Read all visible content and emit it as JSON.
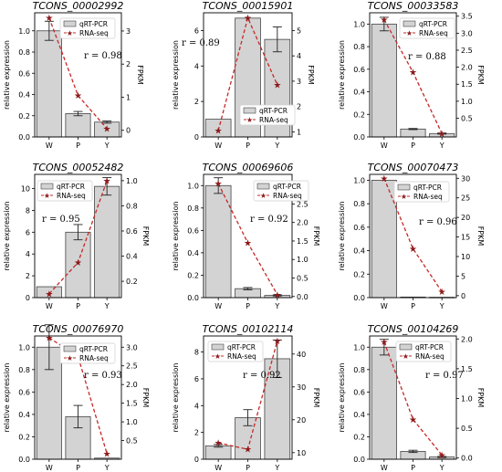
{
  "figure": {
    "left_axis_label": "relative expression",
    "right_axis_label": "FPKM",
    "legend": {
      "bar": "qRT-PCR",
      "line": "RNA-seq"
    },
    "colors": {
      "bar_fill": "#d3d3d3",
      "bar_edge": "#444444",
      "line": "#c62828",
      "marker": "#8b1a1a"
    }
  },
  "chart_data": [
    {
      "type": "bar",
      "title": "TCONS_00002992",
      "categories": [
        "W",
        "P",
        "Y"
      ],
      "series": [
        {
          "name": "qRT-PCR",
          "axis": "left",
          "values": [
            1.0,
            0.22,
            0.14
          ],
          "errors": [
            0.09,
            0.02,
            0.01
          ]
        },
        {
          "name": "RNA-seq",
          "axis": "right",
          "values": [
            3.4,
            1.05,
            0.05
          ]
        }
      ],
      "ylim_left": [
        0,
        1.17
      ],
      "yticks_left": [
        0.0,
        0.2,
        0.4,
        0.6,
        0.8,
        1.0
      ],
      "ylim_right": [
        -0.2,
        3.55
      ],
      "yticks_right": [
        0,
        1,
        2,
        3
      ],
      "annotation": "r = 0.98",
      "legend_position": "upper right"
    },
    {
      "type": "bar",
      "title": "TCONS_00015901",
      "categories": [
        "W",
        "P",
        "Y"
      ],
      "series": [
        {
          "name": "qRT-PCR",
          "axis": "left",
          "values": [
            1.0,
            6.7,
            5.5
          ],
          "errors": [
            0.0,
            0.0,
            0.7
          ]
        },
        {
          "name": "RNA-seq",
          "axis": "right",
          "values": [
            1.05,
            5.5,
            2.85
          ]
        }
      ],
      "ylim_left": [
        0,
        7.0
      ],
      "yticks_left": [
        0,
        2,
        4,
        6
      ],
      "ylim_right": [
        0.8,
        5.7
      ],
      "yticks_right": [
        1,
        2,
        3,
        4,
        5
      ],
      "annotation": "r = 0.89",
      "legend_position": "lower right"
    },
    {
      "type": "bar",
      "title": "TCONS_00033583",
      "categories": [
        "W",
        "P",
        "Y"
      ],
      "series": [
        {
          "name": "qRT-PCR",
          "axis": "left",
          "values": [
            1.0,
            0.07,
            0.03
          ],
          "errors": [
            0.06,
            0.005,
            0.005
          ]
        },
        {
          "name": "RNA-seq",
          "axis": "right",
          "values": [
            3.4,
            1.85,
            0.05
          ]
        }
      ],
      "ylim_left": [
        0,
        1.1
      ],
      "yticks_left": [
        0.0,
        0.2,
        0.4,
        0.6,
        0.8,
        1.0
      ],
      "ylim_right": [
        -0.05,
        3.6
      ],
      "yticks_right": [
        0.5,
        1.0,
        1.5,
        2.0,
        2.5,
        3.0,
        3.5
      ],
      "annotation": "r = 0.88",
      "legend_position": "upper right"
    },
    {
      "type": "bar",
      "title": "TCONS_00052482",
      "categories": [
        "W",
        "P",
        "Y"
      ],
      "series": [
        {
          "name": "qRT-PCR",
          "axis": "left",
          "values": [
            1.0,
            6.0,
            10.2
          ],
          "errors": [
            0.0,
            0.7,
            0.8
          ]
        },
        {
          "name": "RNA-seq",
          "axis": "right",
          "values": [
            0.1,
            0.35,
            1.0
          ]
        }
      ],
      "ylim_left": [
        0,
        11.3
      ],
      "yticks_left": [
        0,
        2,
        4,
        6,
        8,
        10
      ],
      "ylim_right": [
        0.07,
        1.05
      ],
      "yticks_right": [
        0.2,
        0.4,
        0.6,
        0.8,
        1.0
      ],
      "annotation": "r = 0.95",
      "legend_position": "upper left"
    },
    {
      "type": "bar",
      "title": "TCONS_00069606",
      "categories": [
        "W",
        "P",
        "Y"
      ],
      "series": [
        {
          "name": "qRT-PCR",
          "axis": "left",
          "values": [
            1.0,
            0.08,
            0.02
          ],
          "errors": [
            0.07,
            0.01,
            0.005
          ]
        },
        {
          "name": "RNA-seq",
          "axis": "right",
          "values": [
            3.05,
            1.45,
            0.05
          ]
        }
      ],
      "ylim_left": [
        0,
        1.1
      ],
      "yticks_left": [
        0.0,
        0.2,
        0.4,
        0.6,
        0.8,
        1.0
      ],
      "ylim_right": [
        -0.03,
        3.3
      ],
      "yticks_right": [
        0.0,
        0.5,
        1.0,
        1.5,
        2.0,
        2.5,
        3.0
      ],
      "annotation": "r = 0.92",
      "legend_position": "upper right"
    },
    {
      "type": "bar",
      "title": "TCONS_00070473",
      "categories": [
        "W",
        "P",
        "Y"
      ],
      "series": [
        {
          "name": "qRT-PCR",
          "axis": "left",
          "values": [
            1.0,
            0.005,
            0.003
          ],
          "errors": [
            0.0,
            0.0,
            0.0
          ]
        },
        {
          "name": "RNA-seq",
          "axis": "right",
          "values": [
            30,
            12,
            1
          ]
        }
      ],
      "ylim_left": [
        0,
        1.05
      ],
      "yticks_left": [
        0.0,
        0.2,
        0.4,
        0.6,
        0.8,
        1.0
      ],
      "ylim_right": [
        -0.5,
        31
      ],
      "yticks_right": [
        0,
        5,
        10,
        15,
        20,
        25,
        30
      ],
      "annotation": "r = 0.96",
      "legend_position": "upper right"
    },
    {
      "type": "bar",
      "title": "TCONS_00076970",
      "categories": [
        "W",
        "P",
        "Y"
      ],
      "series": [
        {
          "name": "qRT-PCR",
          "axis": "left",
          "values": [
            1.0,
            0.38,
            0.01
          ],
          "errors": [
            0.2,
            0.1,
            0.0
          ]
        },
        {
          "name": "RNA-seq",
          "axis": "right",
          "values": [
            3.25,
            2.75,
            0.15
          ]
        }
      ],
      "ylim_left": [
        0,
        1.1
      ],
      "yticks_left": [
        0.0,
        0.2,
        0.4,
        0.6,
        0.8,
        1.0
      ],
      "ylim_right": [
        0.0,
        3.3
      ],
      "yticks_right": [
        0.5,
        1.0,
        1.5,
        2.0,
        2.5,
        3.0
      ],
      "annotation": "r = 0.93",
      "legend_position": "upper right"
    },
    {
      "type": "bar",
      "title": "TCONS_00102114",
      "categories": [
        "W",
        "P",
        "Y"
      ],
      "series": [
        {
          "name": "qRT-PCR",
          "axis": "left",
          "values": [
            1.0,
            3.1,
            7.5
          ],
          "errors": [
            0.1,
            0.6,
            1.4
          ]
        },
        {
          "name": "RNA-seq",
          "axis": "right",
          "values": [
            13,
            11,
            44
          ]
        }
      ],
      "ylim_left": [
        0,
        9.2
      ],
      "yticks_left": [
        0,
        2,
        4,
        6,
        8
      ],
      "ylim_right": [
        8,
        45.5
      ],
      "yticks_right": [
        10,
        20,
        30,
        40
      ],
      "annotation": "r = 0.92",
      "legend_position": "upper left"
    },
    {
      "type": "bar",
      "title": "TCONS_00104269",
      "categories": [
        "W",
        "P",
        "Y"
      ],
      "series": [
        {
          "name": "qRT-PCR",
          "axis": "left",
          "values": [
            1.0,
            0.07,
            0.02
          ],
          "errors": [
            0.07,
            0.01,
            0.005
          ]
        },
        {
          "name": "RNA-seq",
          "axis": "right",
          "values": [
            1.95,
            0.65,
            0.05
          ]
        }
      ],
      "ylim_left": [
        0,
        1.1
      ],
      "yticks_left": [
        0.0,
        0.2,
        0.4,
        0.6,
        0.8,
        1.0
      ],
      "ylim_right": [
        -0.02,
        2.05
      ],
      "yticks_right": [
        0.0,
        0.5,
        1.0,
        1.5,
        2.0
      ],
      "annotation": "r = 0.97",
      "legend_position": "upper right"
    }
  ]
}
